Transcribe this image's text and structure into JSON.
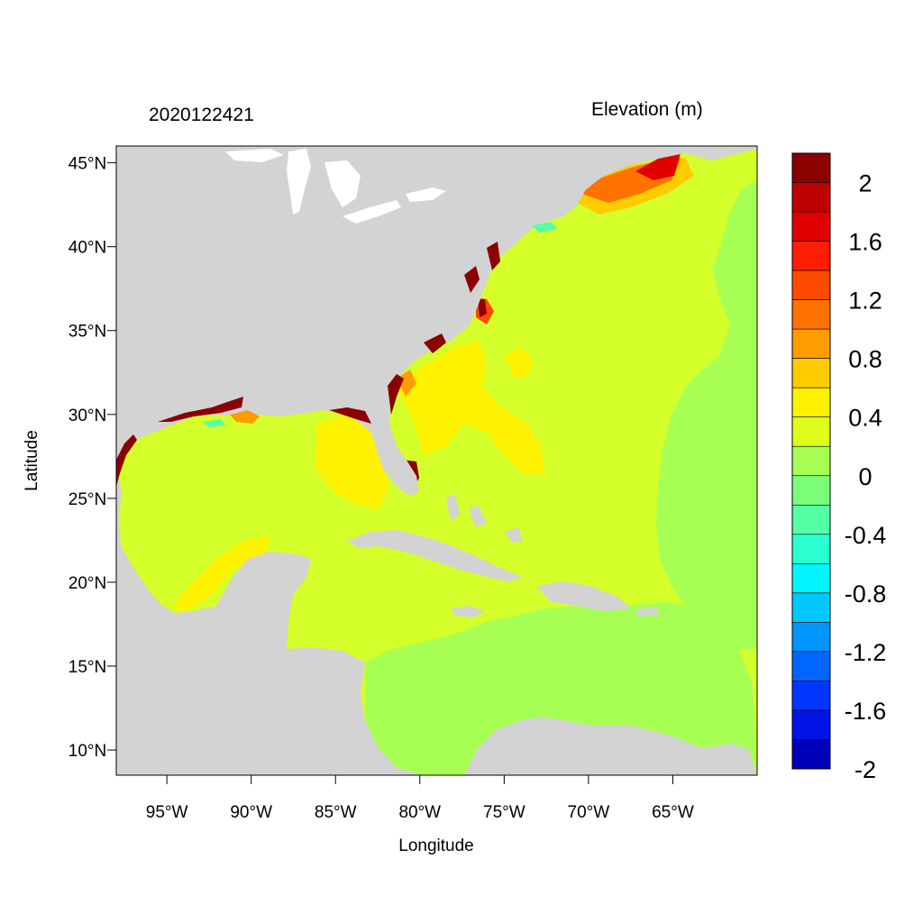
{
  "header": {
    "timestamp": "2020122421",
    "variable_title": "Elevation (m)"
  },
  "axes": {
    "xlabel": "Longitude",
    "ylabel": "Latitude",
    "x_ticks": [
      "95°W",
      "90°W",
      "85°W",
      "80°W",
      "75°W",
      "70°W",
      "65°W"
    ],
    "y_ticks": [
      "45°N",
      "40°N",
      "35°N",
      "30°N",
      "25°N",
      "20°N",
      "15°N",
      "10°N"
    ],
    "lon_range": [
      -98,
      -60
    ],
    "lat_range": [
      8.5,
      46
    ]
  },
  "colorbar": {
    "labels": [
      "2",
      "1.6",
      "1.2",
      "0.8",
      "0.4",
      "0",
      "-0.4",
      "-0.8",
      "-1.2",
      "-1.6",
      "-2"
    ],
    "colors": [
      "#8B0000",
      "#BE0000",
      "#E00000",
      "#FF1E00",
      "#FF4A00",
      "#FF7200",
      "#FF9C00",
      "#FFCC00",
      "#FFF200",
      "#DDFF1A",
      "#A8FF54",
      "#7BFF7B",
      "#55FFA6",
      "#2AFFD2",
      "#00F5FF",
      "#00C8FF",
      "#0096FF",
      "#0066FF",
      "#0036FF",
      "#0014E6",
      "#0000B8"
    ]
  },
  "map_colors": {
    "land": "#D3D3D3",
    "ocean_background": "#D4FF2A",
    "atlantic_east": "#A8FF54",
    "caribbean_south": "#A8FF54",
    "surge_high": "#8B0000",
    "yellow": "#FFF200",
    "gulf_maine": "#FF7200"
  }
}
